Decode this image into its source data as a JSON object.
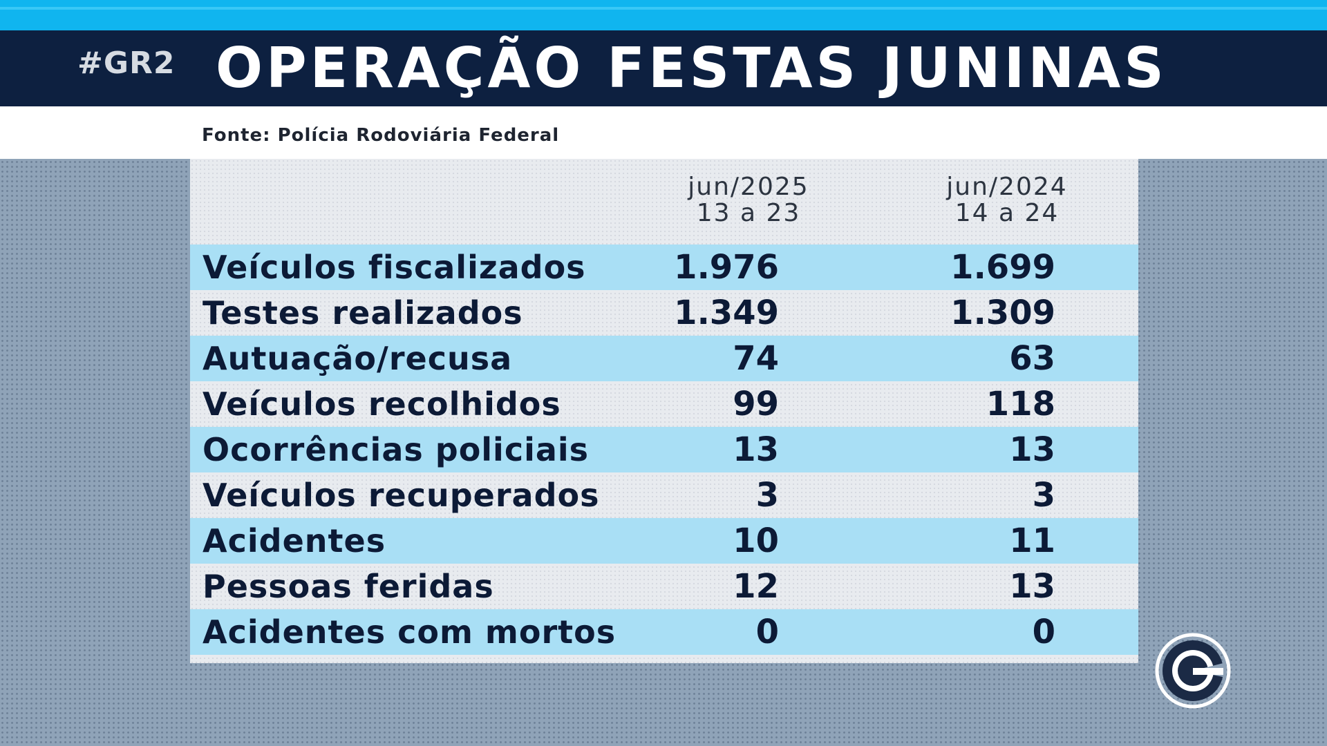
{
  "header": {
    "hashtag": "#GR2",
    "title": "OPERAÇÃO FESTAS JUNINAS",
    "source": "Fonte: Polícia Rodoviária Federal"
  },
  "table": {
    "columns": [
      {
        "period": "jun/2025",
        "days": "13 a 23"
      },
      {
        "period": "jun/2024",
        "days": "14 a 24"
      }
    ],
    "rows": [
      {
        "label": "Veículos fiscalizados",
        "v2025": "1.976",
        "v2024": "1.699"
      },
      {
        "label": "Testes realizados",
        "v2025": "1.349",
        "v2024": "1.309"
      },
      {
        "label": "Autuação/recusa",
        "v2025": "74",
        "v2024": "63"
      },
      {
        "label": "Veículos recolhidos",
        "v2025": "99",
        "v2024": "118"
      },
      {
        "label": "Ocorrências policiais",
        "v2025": "13",
        "v2024": "13"
      },
      {
        "label": "Veículos recuperados",
        "v2025": "3",
        "v2024": "3"
      },
      {
        "label": "Acidentes",
        "v2025": "10",
        "v2024": "11"
      },
      {
        "label": "Pessoas feridas",
        "v2025": "12",
        "v2024": "13"
      },
      {
        "label": "Acidentes com mortos",
        "v2025": "0",
        "v2024": "0"
      }
    ]
  },
  "colors": {
    "title_bar": "#0d2040",
    "accent_stripe": "#10b5ef",
    "row_highlight": "#a9dff5"
  },
  "logo": {
    "icon": "broadcaster-logo-icon"
  }
}
